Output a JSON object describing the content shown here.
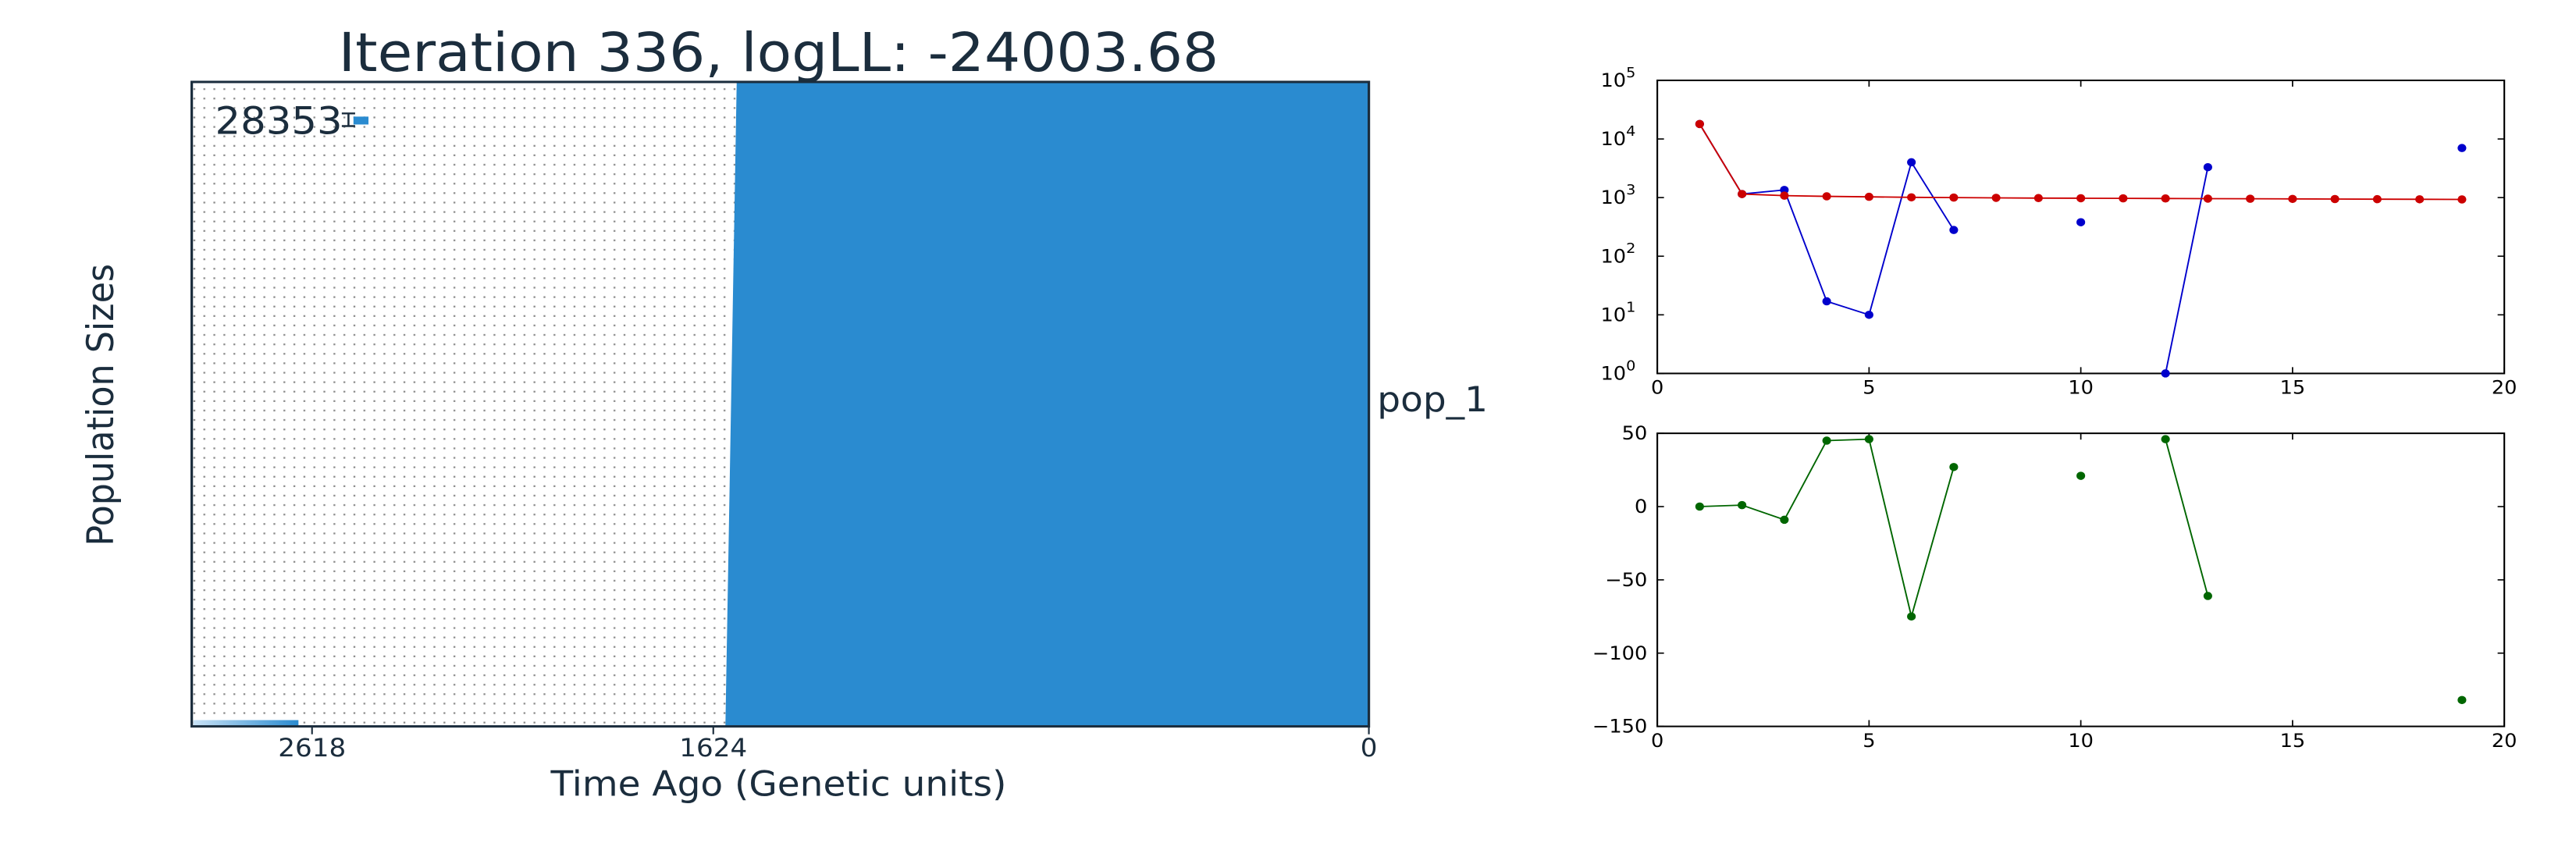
{
  "chart_data": [
    {
      "type": "area",
      "title": "Iteration 336, logLL:  -24003.68",
      "xlabel": "Time Ago (Genetic units)",
      "ylabel": "Population Sizes",
      "x_tick_labels": [
        "2618",
        "1624",
        "0"
      ],
      "x_tick_values": [
        2618,
        1624,
        0
      ],
      "xlim": [
        2916,
        0
      ],
      "population_label": "pop_1",
      "size_label": "28353",
      "color": "#2a8bd0",
      "boundary": {
        "time_top": 1566,
        "time_bottom": 1594
      },
      "grid": true
    },
    {
      "type": "line",
      "ylog": true,
      "xlim": [
        0,
        20
      ],
      "ylim": [
        1,
        100000
      ],
      "x_ticks": [
        0,
        5,
        10,
        15,
        20
      ],
      "y_ticks": [
        1,
        10,
        100,
        1000,
        10000,
        100000
      ],
      "y_tick_labels": [
        "10",
        "10",
        "10",
        "10",
        "10",
        "10"
      ],
      "y_tick_exponents": [
        "0",
        "1",
        "2",
        "3",
        "4",
        "5"
      ],
      "series": [
        {
          "color": "#0000cc",
          "x": [
            1,
            2,
            3,
            4,
            5,
            6,
            7,
            10,
            12,
            13,
            19
          ],
          "y": [
            18000,
            1150,
            1350,
            17,
            10,
            4000,
            280,
            380,
            1,
            3300,
            7000
          ],
          "connected": [
            [
              1,
              2,
              3,
              4,
              5,
              6,
              7
            ],
            [
              10
            ],
            [
              12,
              13
            ],
            [
              19
            ]
          ]
        },
        {
          "color": "#cc0000",
          "x": [
            1,
            2,
            3,
            4,
            5,
            6,
            7,
            8,
            9,
            10,
            11,
            12,
            13,
            14,
            15,
            16,
            17,
            18,
            19
          ],
          "y": [
            18000,
            1150,
            1080,
            1050,
            1030,
            1010,
            1000,
            990,
            980,
            975,
            970,
            965,
            960,
            955,
            950,
            945,
            940,
            935,
            930
          ],
          "connected": [
            [
              1,
              2,
              3,
              4,
              5,
              6,
              7,
              8,
              9,
              10,
              11,
              12,
              13,
              14,
              15,
              16,
              17,
              18,
              19
            ]
          ]
        }
      ]
    },
    {
      "type": "line",
      "xlim": [
        0,
        20
      ],
      "ylim": [
        -150,
        50
      ],
      "x_ticks": [
        0,
        5,
        10,
        15,
        20
      ],
      "y_ticks": [
        50,
        0,
        -50,
        -100,
        -150
      ],
      "series": [
        {
          "color": "#006600",
          "x": [
            1,
            2,
            3,
            4,
            5,
            6,
            7,
            10,
            12,
            13,
            19
          ],
          "y": [
            0,
            1,
            -9,
            45,
            46,
            -75,
            27,
            21,
            46,
            -61,
            -132
          ],
          "connected": [
            [
              1,
              2,
              3,
              4,
              5,
              6,
              7
            ],
            [
              10
            ],
            [
              12,
              13
            ],
            [
              19
            ]
          ]
        }
      ]
    }
  ]
}
